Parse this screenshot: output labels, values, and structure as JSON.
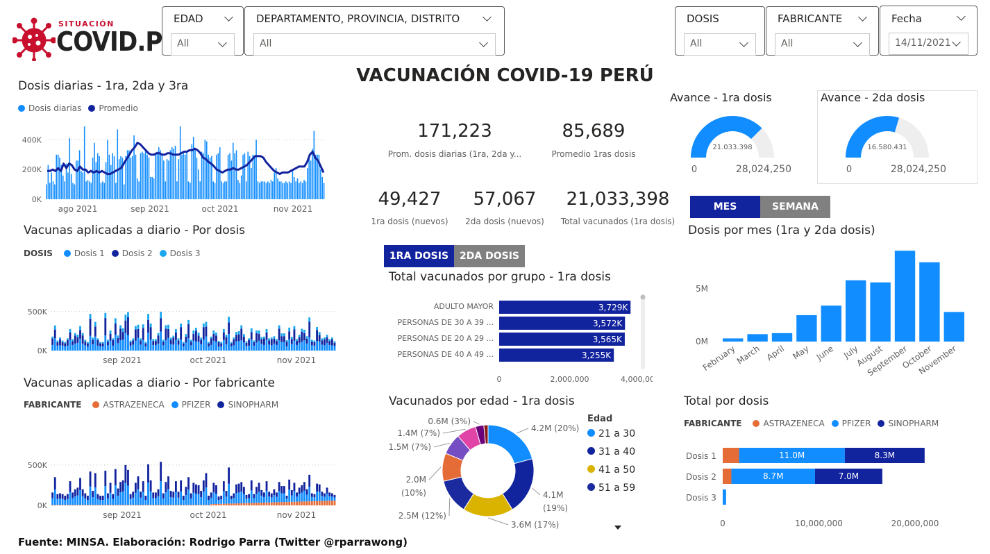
{
  "logo": {
    "small": "SITUACIÓN",
    "big": "COVID.PE"
  },
  "slicers": {
    "edad": {
      "title": "EDAD",
      "value": "All"
    },
    "region": {
      "title": "DEPARTAMENTO, PROVINCIA, DISTRITO",
      "value": "All"
    },
    "dosis": {
      "title": "DOSIS",
      "value": "All"
    },
    "fabricante": {
      "title": "FABRICANTE",
      "value": "All"
    },
    "fecha": {
      "title": "Fecha",
      "value": "14/11/2021"
    }
  },
  "main_title": "VACUNACIÓN COVID-19 PERÚ",
  "kpis": [
    {
      "value": "171,223",
      "label": "Prom. dosis diarias (1ra, 2da y..."
    },
    {
      "value": "85,689",
      "label": "Promedio 1ras dosis"
    },
    {
      "value": "49,427",
      "label": "1ra dosis (nuevos)"
    },
    {
      "value": "57,067",
      "label": "2da dosis (nuevos)"
    },
    {
      "value": "21,033,398",
      "label": "Total vacunados (1ra dosis)"
    }
  ],
  "gauges": [
    {
      "title": "Avance - 1ra dosis",
      "value": 21033398,
      "value_label": "21.033.398",
      "min_label": "0",
      "max_label": "28,024,250",
      "max": 28024250
    },
    {
      "title": "Avance - 2da dosis",
      "value": 16580431,
      "value_label": "16.580.431",
      "min_label": "0",
      "max_label": "28,024,250",
      "max": 28024250
    }
  ],
  "toggles": {
    "period": {
      "mes": "MES",
      "semana": "SEMANA"
    },
    "dose": {
      "first": "1RA DOSIS",
      "second": "2DA DOSIS"
    }
  },
  "footer": "Fuente: MINSA. Elaboración: Rodrigo Parra (Twitter @rparrawong)",
  "colors": {
    "blue": "#118dff",
    "navy": "#12239e",
    "orange": "#e66c37",
    "gold": "#d9b300",
    "pink": "#e044a7",
    "purple": "#744ec2",
    "darkred": "#6b007b",
    "gray": "#808080"
  },
  "chart_data": [
    {
      "id": "daily",
      "type": "bar",
      "title": "Dosis diarias - 1ra, 2da y 3ra",
      "legend": [
        {
          "name": "Dosis diarias",
          "color": "#118dff"
        },
        {
          "name": "Promedio",
          "color": "#12239e"
        }
      ],
      "yticks": [
        "0K",
        "200K",
        "400K"
      ],
      "ylim": [
        0,
        500000
      ],
      "xticks": [
        "ago 2021",
        "sep 2021",
        "oct 2021",
        "nov 2021"
      ],
      "values": [
        100000,
        230000,
        110000,
        180000,
        120000,
        100000,
        300000,
        300000,
        280000,
        230000,
        160000,
        120000,
        240000,
        180000,
        410000,
        170000,
        110000,
        100000,
        260000,
        260000,
        330000,
        190000,
        180000,
        490000,
        120000,
        130000,
        120000,
        110000,
        280000,
        380000,
        250000,
        310000,
        290000,
        110000,
        120000,
        110000,
        250000,
        400000,
        300000,
        230000,
        310000,
        290000,
        110000,
        470000,
        270000,
        290000,
        280000,
        100000,
        290000,
        330000,
        330000,
        280000,
        290000,
        430000,
        300000,
        140000,
        120000,
        310000,
        320000,
        310000,
        330000,
        300000,
        280000,
        150000,
        150000,
        140000,
        310000,
        320000,
        350000,
        330000,
        300000,
        260000,
        120000,
        270000,
        260000,
        330000,
        350000,
        340000,
        360000,
        120000,
        270000,
        490000,
        300000,
        310000,
        300000,
        320000,
        120000,
        110000,
        370000,
        420000,
        330000,
        280000,
        200000,
        120000,
        320000,
        310000,
        400000,
        390000,
        300000,
        280000,
        290000,
        120000,
        110000,
        300000,
        310000,
        350000,
        120000,
        110000,
        120000,
        120000,
        300000,
        310000,
        260000,
        380000,
        310000,
        330000,
        130000,
        110000,
        160000,
        300000,
        310000,
        120000,
        320000,
        290000,
        210000,
        300000,
        280000,
        400000,
        120000,
        110000,
        120000,
        120000,
        120000,
        110000,
        120000,
        110000,
        130000,
        120000,
        180000,
        210000,
        140000,
        120000,
        120000,
        110000,
        110000,
        120000,
        110000,
        120000,
        110000,
        200000,
        150000,
        120000,
        140000,
        110000,
        120000,
        110000,
        130000,
        120000,
        210000,
        280000,
        260000,
        340000,
        460000,
        300000,
        300000,
        300000,
        200000,
        150000,
        110000
      ],
      "average": [
        190000,
        190000,
        200000,
        190000,
        210000,
        190000,
        240000,
        210000,
        240000,
        230000,
        200000,
        190000,
        220000,
        200000,
        200000,
        180000,
        190000,
        180000,
        190000,
        180000,
        190000,
        180000,
        170000,
        170000,
        180000,
        190000,
        200000,
        210000,
        240000,
        270000,
        300000,
        330000,
        350000,
        380000,
        370000,
        350000,
        330000,
        310000,
        300000,
        300000,
        310000,
        310000,
        300000,
        300000,
        310000,
        310000,
        300000,
        300000,
        300000,
        310000,
        320000,
        320000,
        330000,
        330000,
        340000,
        330000,
        310000,
        280000,
        270000,
        250000,
        240000,
        220000,
        200000,
        190000,
        180000,
        190000,
        200000,
        200000,
        210000,
        200000,
        200000,
        210000,
        220000,
        230000,
        250000,
        270000,
        290000,
        290000,
        290000,
        280000,
        250000,
        230000,
        210000,
        190000,
        180000,
        170000,
        180000,
        180000,
        180000,
        190000,
        200000,
        210000,
        220000,
        220000,
        220000,
        250000,
        300000,
        320000,
        280000,
        260000,
        220000,
        180000
      ]
    },
    {
      "id": "by_dose",
      "type": "bar",
      "stacked": true,
      "title": "Vacunas aplicadas a diario - Por dosis",
      "legend_title": "DOSIS",
      "legend": [
        {
          "name": "Dosis 1",
          "color": "#118dff"
        },
        {
          "name": "Dosis 2",
          "color": "#12239e"
        },
        {
          "name": "Dosis 3",
          "color": "#1aa7ee"
        }
      ],
      "yticks": [
        "0K",
        "500K"
      ],
      "ylim": [
        0,
        800000
      ],
      "xticks": [
        "sep 2021",
        "oct 2021",
        "nov 2021"
      ],
      "totals": [
        160000,
        350000,
        140000,
        150000,
        140000,
        120000,
        140000,
        300000,
        160000,
        200000,
        220000,
        340000,
        200000,
        150000,
        120000,
        420000,
        180000,
        400000,
        140000,
        120000,
        120000,
        430000,
        150000,
        280000,
        140000,
        450000,
        210000,
        290000,
        310000,
        500000,
        440000,
        140000,
        170000,
        280000,
        360000,
        170000,
        300000,
        120000,
        510000,
        310000,
        160000,
        160000,
        200000,
        540000,
        150000,
        290000,
        360000,
        180000,
        170000,
        300000,
        170000,
        310000,
        120000,
        230000,
        350000,
        150000,
        280000,
        260000,
        250000,
        180000,
        310000,
        400000,
        120000,
        160000,
        280000,
        250000,
        110000,
        120000,
        300000,
        180000,
        470000,
        120000,
        150000,
        260000,
        270000,
        290000,
        230000,
        130000,
        140000,
        310000,
        140000,
        230000,
        280000,
        190000,
        160000,
        300000,
        170000,
        150000,
        200000,
        160000,
        290000,
        240000,
        240000,
        120000,
        320000,
        190000,
        280000,
        160000,
        220000,
        250000,
        290000,
        200000,
        380000,
        150000,
        140000,
        270000,
        260000,
        170000,
        150000,
        220000,
        160000,
        150000,
        130000
      ],
      "share": [
        0.45,
        0.4,
        0.15
      ]
    },
    {
      "id": "by_maker",
      "type": "bar",
      "stacked": true,
      "title": "Vacunas aplicadas a diario - Por fabricante",
      "legend_title": "FABRICANTE",
      "legend": [
        {
          "name": "ASTRAZENECA",
          "color": "#e66c37"
        },
        {
          "name": "PFIZER",
          "color": "#118dff"
        },
        {
          "name": "SINOPHARM",
          "color": "#12239e"
        }
      ],
      "yticks": [
        "0K",
        "500K"
      ],
      "ylim": [
        0,
        800000
      ],
      "xticks": [
        "sep 2021",
        "oct 2021",
        "nov 2021"
      ],
      "totals": [
        160000,
        350000,
        140000,
        150000,
        140000,
        120000,
        140000,
        300000,
        160000,
        200000,
        220000,
        340000,
        200000,
        150000,
        120000,
        420000,
        180000,
        400000,
        140000,
        120000,
        120000,
        430000,
        150000,
        280000,
        140000,
        450000,
        210000,
        290000,
        310000,
        500000,
        440000,
        140000,
        170000,
        280000,
        360000,
        170000,
        300000,
        120000,
        510000,
        310000,
        160000,
        160000,
        200000,
        540000,
        150000,
        290000,
        360000,
        180000,
        170000,
        300000,
        170000,
        310000,
        120000,
        230000,
        350000,
        150000,
        280000,
        260000,
        250000,
        180000,
        310000,
        400000,
        120000,
        160000,
        280000,
        250000,
        110000,
        120000,
        300000,
        180000,
        470000,
        120000,
        150000,
        260000,
        270000,
        290000,
        230000,
        130000,
        140000,
        310000,
        140000,
        230000,
        280000,
        190000,
        160000,
        300000,
        170000,
        150000,
        200000,
        160000,
        290000,
        240000,
        240000,
        120000,
        320000,
        190000,
        280000,
        160000,
        220000,
        250000,
        290000,
        200000,
        380000,
        150000,
        140000,
        270000,
        260000,
        170000,
        150000,
        220000,
        160000,
        150000,
        130000
      ]
    },
    {
      "id": "group_hbar",
      "type": "bar",
      "orientation": "horizontal",
      "title": "Total vacunados por grupo - 1ra dosis",
      "categories": [
        "ADULTO MAYOR",
        "PERSONAS DE 30 A 39 ...",
        "PERSONAS DE 20 A 29 ...",
        "PERSONAS DE 40 A 49 ..."
      ],
      "values": [
        3729000,
        3572000,
        3565000,
        3255000
      ],
      "data_labels": [
        "3,729K",
        "3,572K",
        "3,565K",
        "3,255K"
      ],
      "xlim": [
        0,
        4000000
      ],
      "xticks": [
        "0",
        "2,000,000",
        "4,000,000"
      ]
    },
    {
      "id": "age_donut",
      "type": "pie",
      "title": "Vacunados por edad - 1ra dosis",
      "legend_title": "Edad",
      "legend": [
        "21 a 30",
        "31 a 40",
        "41 a 50",
        "51 a 59"
      ],
      "slices": [
        {
          "value": 4.2,
          "label": "4.2M (20%)",
          "color": "#118dff"
        },
        {
          "value": 4.1,
          "label": "4.1M (19%)",
          "color": "#12239e"
        },
        {
          "value": 3.6,
          "label": "3.6M (17%)",
          "color": "#d9b300"
        },
        {
          "value": 2.5,
          "label": "2.5M (12%)",
          "color": "#1b2a9e"
        },
        {
          "value": 2.0,
          "label": "2.0M (10%)",
          "color": "#e66c37"
        },
        {
          "value": 1.5,
          "label": "1.5M (7%)",
          "color": "#744ec2"
        },
        {
          "value": 1.4,
          "label": "1.4M (7%)",
          "color": "#e044a7"
        },
        {
          "value": 0.6,
          "label": "0.6M (3%)",
          "color": "#6b007b"
        },
        {
          "value": 0.3,
          "label": "",
          "color": "#8b1a1a"
        }
      ]
    },
    {
      "id": "monthly",
      "type": "bar",
      "title": "Dosis por mes (1ra y 2da dosis)",
      "categories": [
        "February",
        "March",
        "April",
        "May",
        "June",
        "July",
        "August",
        "September",
        "October",
        "November"
      ],
      "values": [
        300000,
        700000,
        800000,
        2500000,
        3400000,
        5800000,
        5600000,
        8600000,
        7500000,
        2800000
      ],
      "ylim": [
        0,
        9000000
      ],
      "yticks": [
        "0M",
        "5M"
      ]
    },
    {
      "id": "total_by_dose",
      "type": "bar",
      "orientation": "horizontal",
      "stacked": true,
      "title": "Total por dosis",
      "legend_title": "FABRICANTE",
      "legend": [
        {
          "name": "ASTRAZENECA",
          "color": "#e66c37"
        },
        {
          "name": "PFIZER",
          "color": "#118dff"
        },
        {
          "name": "SINOPHARM",
          "color": "#12239e"
        }
      ],
      "categories": [
        "Dosis 1",
        "Dosis 2",
        "Dosis 3"
      ],
      "series": [
        {
          "name": "ASTRAZENECA",
          "values": [
            1700000,
            900000,
            0
          ]
        },
        {
          "name": "PFIZER",
          "values": [
            11000000,
            8700000,
            350000
          ]
        },
        {
          "name": "SINOPHARM",
          "values": [
            8300000,
            7000000,
            0
          ]
        }
      ],
      "segment_labels": [
        [
          "",
          "11.0M",
          "8.3M"
        ],
        [
          "",
          "8.7M",
          "7.0M"
        ],
        [
          "",
          "",
          ""
        ]
      ],
      "xlim": [
        0,
        20000000
      ],
      "xticks": [
        "0",
        "10,000,000",
        "20,000,000"
      ]
    }
  ]
}
